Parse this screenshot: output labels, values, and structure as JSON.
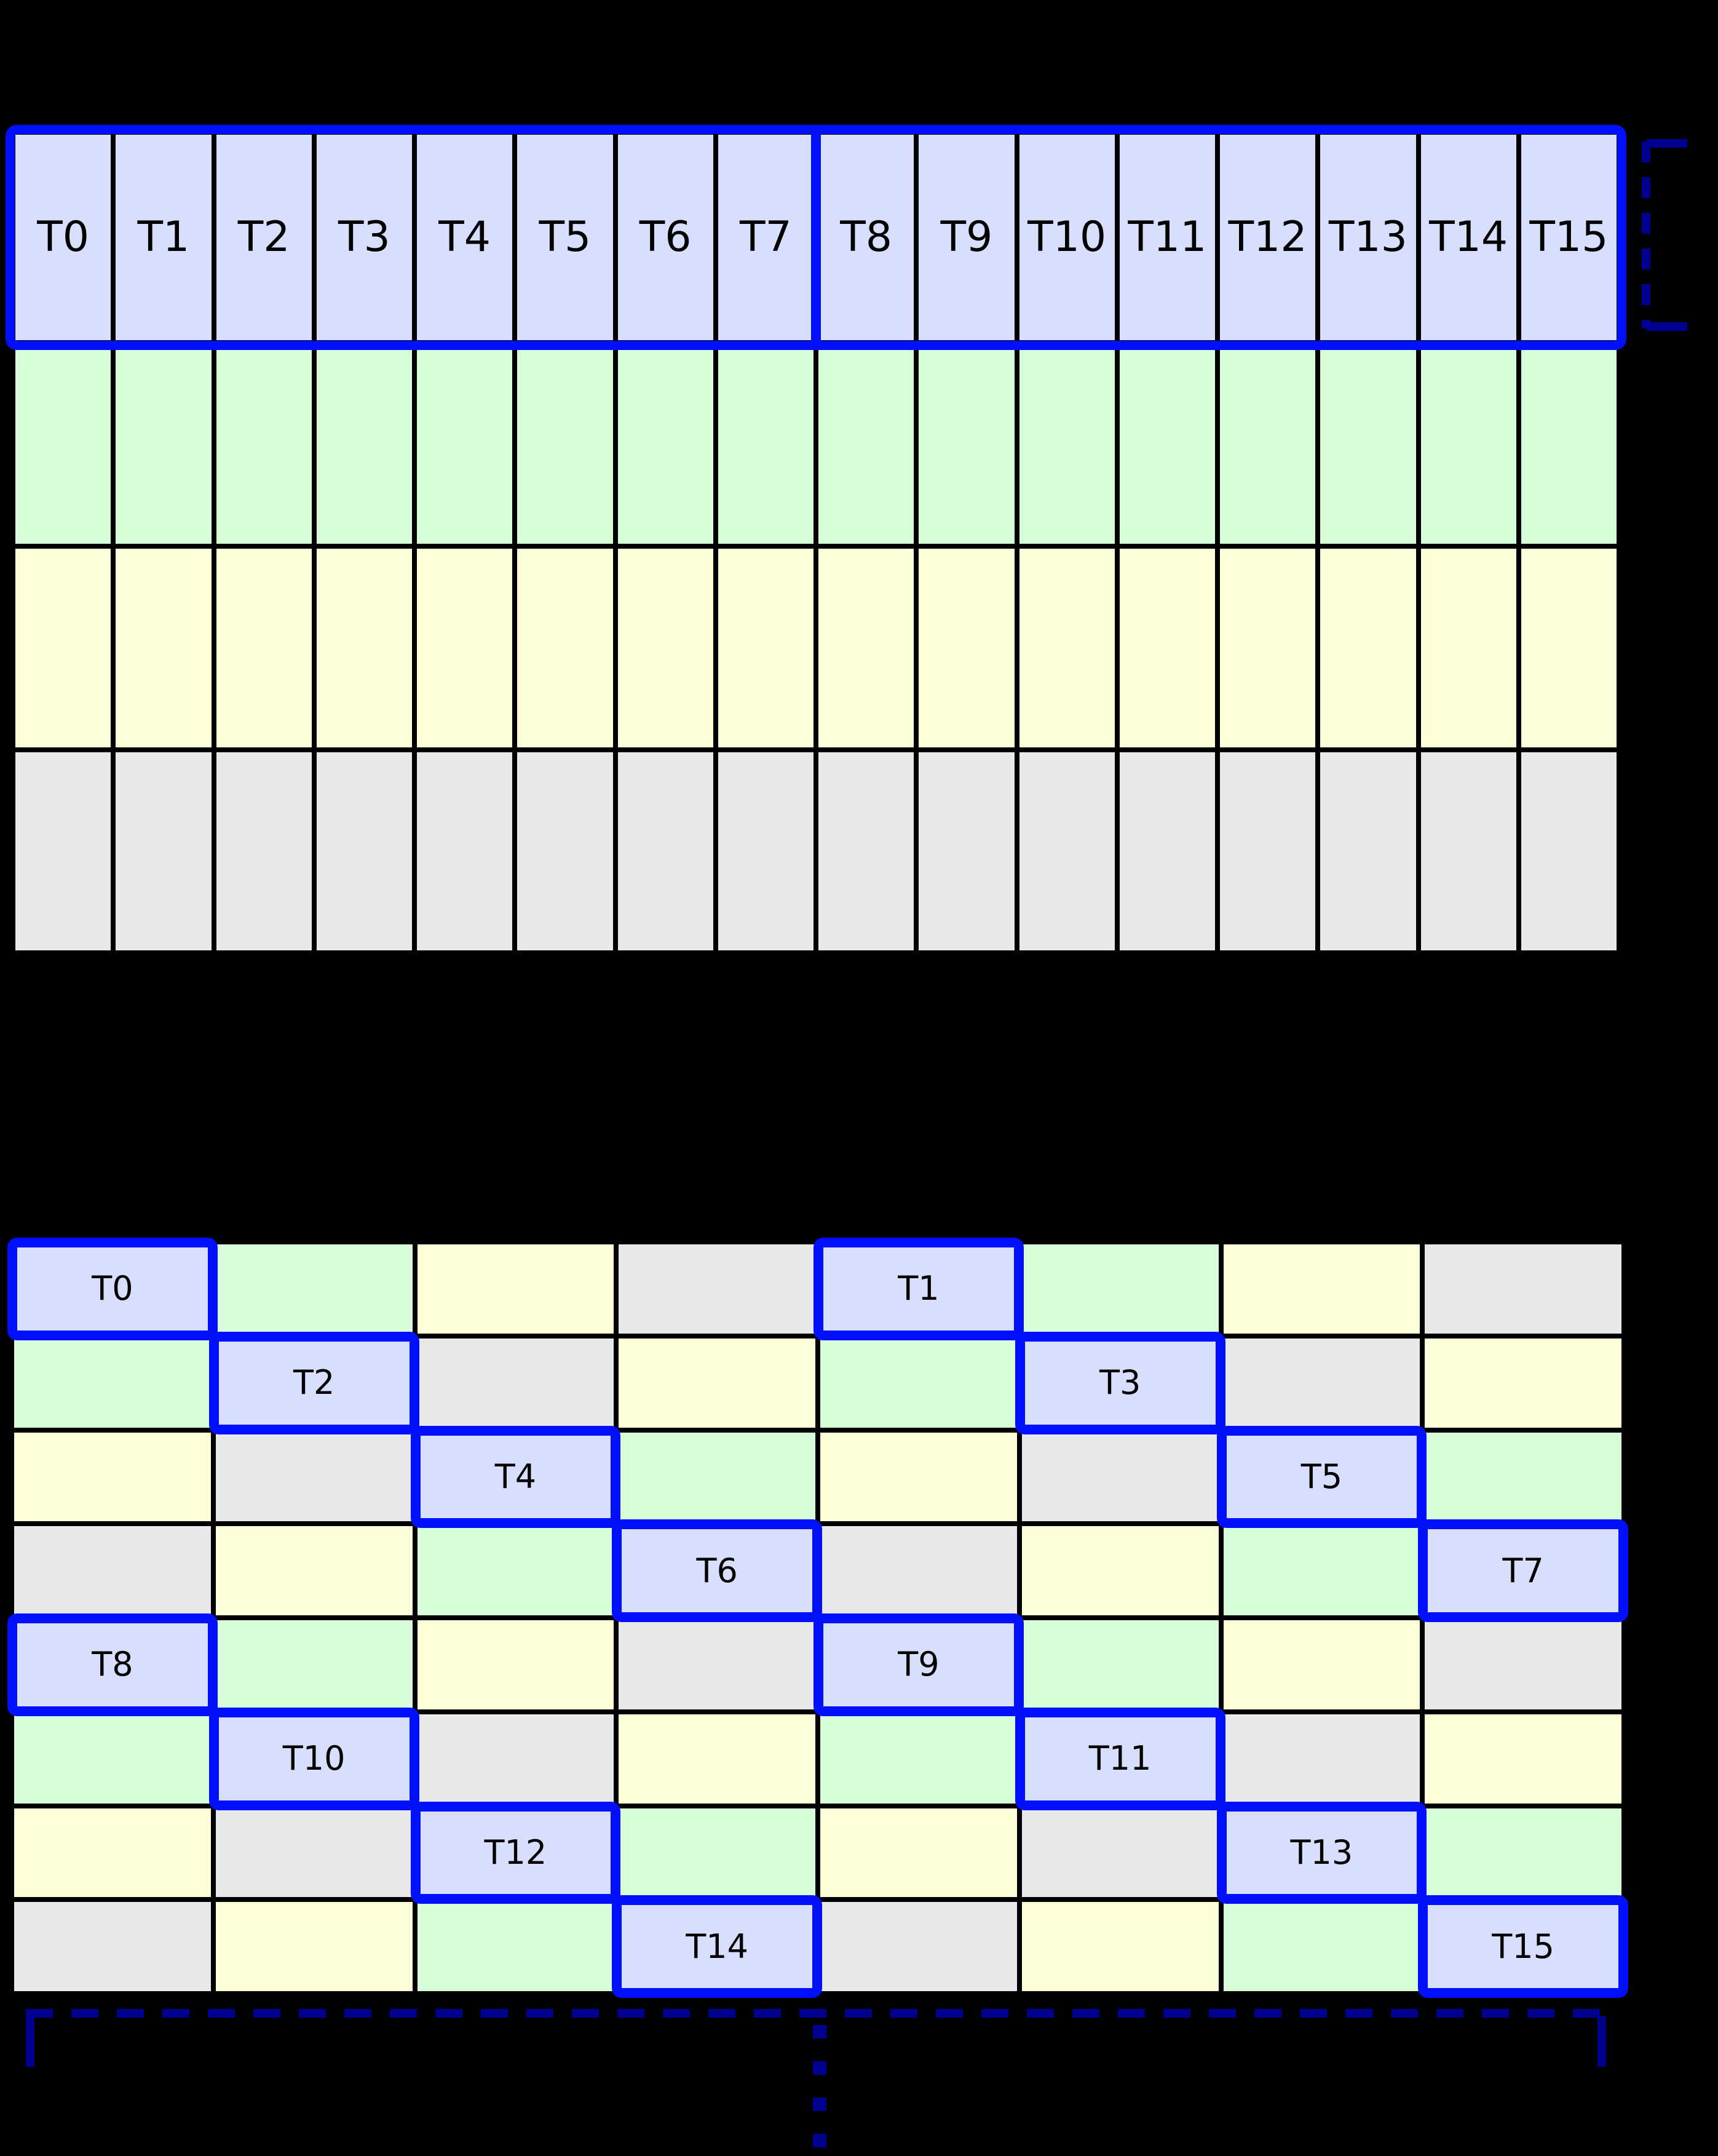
{
  "colors": {
    "background": "#000000",
    "thread_cell": "#d7dffc",
    "green_cell": "#d7fdd9",
    "yellow_cell": "#fdfdd8",
    "gray_cell": "#e8e8ea",
    "highlight_blue": "#0010ff",
    "bracket_navy": "#000090",
    "grid_line": "#000000"
  },
  "top_grid": {
    "columns": 16,
    "thread_labels": [
      "T0",
      "T1",
      "T2",
      "T3",
      "T4",
      "T5",
      "T6",
      "T7",
      "T8",
      "T9",
      "T10",
      "T11",
      "T12",
      "T13",
      "T14",
      "T15"
    ],
    "half_split_after_label": "T7",
    "data_row_colors": [
      "green_cell",
      "yellow_cell",
      "gray_cell"
    ]
  },
  "right_bracket": {
    "style": "dashed",
    "spans": "thread-row"
  },
  "bottom_grid": {
    "columns": 8,
    "rows": [
      [
        {
          "t": "T0"
        },
        {
          "c": "green_cell"
        },
        {
          "c": "yellow_cell"
        },
        {
          "c": "gray_cell"
        },
        {
          "t": "T1"
        },
        {
          "c": "green_cell"
        },
        {
          "c": "yellow_cell"
        },
        {
          "c": "gray_cell"
        }
      ],
      [
        {
          "c": "green_cell"
        },
        {
          "t": "T2"
        },
        {
          "c": "gray_cell"
        },
        {
          "c": "yellow_cell"
        },
        {
          "c": "green_cell"
        },
        {
          "t": "T3"
        },
        {
          "c": "gray_cell"
        },
        {
          "c": "yellow_cell"
        }
      ],
      [
        {
          "c": "yellow_cell"
        },
        {
          "c": "gray_cell"
        },
        {
          "t": "T4"
        },
        {
          "c": "green_cell"
        },
        {
          "c": "yellow_cell"
        },
        {
          "c": "gray_cell"
        },
        {
          "t": "T5"
        },
        {
          "c": "green_cell"
        }
      ],
      [
        {
          "c": "gray_cell"
        },
        {
          "c": "yellow_cell"
        },
        {
          "c": "green_cell"
        },
        {
          "t": "T6"
        },
        {
          "c": "gray_cell"
        },
        {
          "c": "yellow_cell"
        },
        {
          "c": "green_cell"
        },
        {
          "t": "T7"
        }
      ],
      [
        {
          "t": "T8"
        },
        {
          "c": "green_cell"
        },
        {
          "c": "yellow_cell"
        },
        {
          "c": "gray_cell"
        },
        {
          "t": "T9"
        },
        {
          "c": "green_cell"
        },
        {
          "c": "yellow_cell"
        },
        {
          "c": "gray_cell"
        }
      ],
      [
        {
          "c": "green_cell"
        },
        {
          "t": "T10"
        },
        {
          "c": "gray_cell"
        },
        {
          "c": "yellow_cell"
        },
        {
          "c": "green_cell"
        },
        {
          "t": "T11"
        },
        {
          "c": "gray_cell"
        },
        {
          "c": "yellow_cell"
        }
      ],
      [
        {
          "c": "yellow_cell"
        },
        {
          "c": "gray_cell"
        },
        {
          "t": "T12"
        },
        {
          "c": "green_cell"
        },
        {
          "c": "yellow_cell"
        },
        {
          "c": "gray_cell"
        },
        {
          "t": "T13"
        },
        {
          "c": "green_cell"
        }
      ],
      [
        {
          "c": "gray_cell"
        },
        {
          "c": "yellow_cell"
        },
        {
          "c": "green_cell"
        },
        {
          "t": "T14"
        },
        {
          "c": "gray_cell"
        },
        {
          "c": "yellow_cell"
        },
        {
          "c": "green_cell"
        },
        {
          "t": "T15"
        }
      ]
    ]
  },
  "bottom_bracket": {
    "style": "dashed",
    "spans": "grid-width"
  },
  "ellipsis": {
    "dot_count": 4
  }
}
